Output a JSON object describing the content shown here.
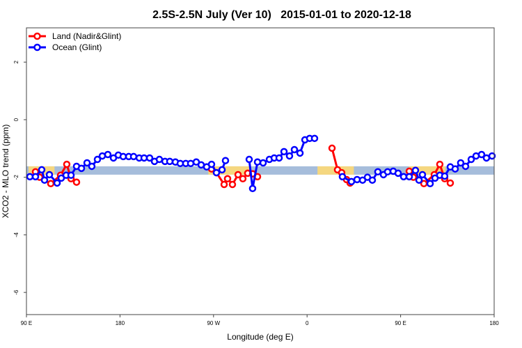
{
  "chart_data": {
    "type": "line",
    "title": "2.5S-2.5N July (Ver 10)   2015-01-01 to 2020-12-18",
    "xlabel": "Longitude (deg E)",
    "ylabel": "XCO2 - MLO trend (ppm)",
    "xlim": [
      90,
      540
    ],
    "ylim": [
      -6.77,
      3.19
    ],
    "x_ticks": [
      {
        "value": 90,
        "label": "90 E"
      },
      {
        "value": 180,
        "label": "180"
      },
      {
        "value": 270,
        "label": "90 W"
      },
      {
        "value": 360,
        "label": "0"
      },
      {
        "value": 450,
        "label": "90 E"
      },
      {
        "value": 540,
        "label": "180"
      }
    ],
    "y_ticks": [
      {
        "value": 2,
        "label": "2"
      },
      {
        "value": 0,
        "label": "0"
      },
      {
        "value": -2,
        "label": "-2"
      },
      {
        "value": -4,
        "label": "-4"
      },
      {
        "value": -6,
        "label": "-6"
      }
    ],
    "grid": false,
    "legend_position": "top-left",
    "background_band": {
      "ymin": -1.91,
      "ymax": -1.62,
      "color": "#a6bddb",
      "land_color": "#fed976",
      "land_ranges": [
        [
          92,
          117
        ],
        [
          265,
          305
        ],
        [
          370,
          405
        ],
        [
          458,
          493
        ]
      ]
    },
    "series": [
      {
        "name": "Land (Nadir&Glint)",
        "color": "#ff0000",
        "x": [
          98.7,
          102.7,
          113.4,
          122.8,
          128.8,
          132.9,
          138.2,
          null,
          268.1,
          272.8,
          280.2,
          283.5,
          288.2,
          293.6,
          298.2,
          302.9,
          307.6,
          312.3,
          null,
          384.0,
          389.3,
          393.3,
          398.0,
          401.4,
          null,
          458.3,
          462.3,
          472.4,
          482.4,
          487.7,
          492.4,
          497.8
        ],
        "y": [
          -1.81,
          -2.0,
          -2.22,
          -1.93,
          -1.55,
          -2.05,
          -2.17,
          null,
          -1.71,
          -1.84,
          -2.25,
          -2.05,
          -2.25,
          -1.91,
          -2.05,
          -1.86,
          -1.88,
          -1.98,
          null,
          -0.99,
          -1.74,
          -1.84,
          -2.08,
          -2.2,
          null,
          -1.79,
          -2.0,
          -2.22,
          -1.91,
          -1.55,
          -2.05,
          -2.2
        ]
      },
      {
        "name": "Ocean (Glint)",
        "color": "#0000ff",
        "x": [
          93.3,
          98.7,
          104.7,
          107.4,
          112.1,
          119.5,
          123.5,
          128.2,
          132.9,
          138.2,
          142.9,
          148.3,
          152.9,
          158.3,
          163.0,
          168.3,
          173.7,
          178.4,
          183.1,
          188.4,
          193.1,
          198.5,
          203.2,
          208.5,
          213.2,
          217.9,
          223.3,
          227.9,
          233.3,
          238.0,
          243.3,
          248.0,
          253.4,
          258.1,
          263.4,
          268.1,
          272.8,
          278.2,
          281.5,
          null,
          304.3,
          307.6,
          312.3,
          317.7,
          323.7,
          328.4,
          333.1,
          337.8,
          343.1,
          347.8,
          353.2,
          357.9,
          362.5,
          367.2,
          null,
          394.0,
          402.7,
          408.1,
          413.4,
          418.1,
          422.8,
          428.1,
          433.5,
          437.5,
          442.9,
          447.6,
          452.9,
          458.3,
          464.3,
          467.7,
          471.0,
          478.4,
          483.1,
          487.7,
          492.4,
          497.8,
          502.5,
          507.8,
          512.5,
          517.9,
          522.6,
          527.9,
          532.6,
          538.0
        ],
        "y": [
          -1.98,
          -1.98,
          -1.74,
          -2.1,
          -1.91,
          -2.2,
          -2.03,
          -1.93,
          -1.93,
          -1.62,
          -1.69,
          -1.5,
          -1.62,
          -1.38,
          -1.26,
          -1.21,
          -1.33,
          -1.23,
          -1.28,
          -1.28,
          -1.28,
          -1.33,
          -1.33,
          -1.33,
          -1.45,
          -1.38,
          -1.45,
          -1.45,
          -1.47,
          -1.52,
          -1.52,
          -1.52,
          -1.47,
          -1.57,
          -1.64,
          -1.55,
          -1.84,
          -1.74,
          -1.42,
          null,
          -1.38,
          -2.39,
          -1.47,
          -1.5,
          -1.38,
          -1.33,
          -1.33,
          -1.11,
          -1.26,
          -1.04,
          -1.16,
          -0.7,
          -0.65,
          -0.65,
          null,
          -1.98,
          -2.15,
          -2.08,
          -2.1,
          -2.0,
          -2.1,
          -1.81,
          -1.91,
          -1.81,
          -1.79,
          -1.86,
          -1.98,
          -1.98,
          -1.76,
          -2.1,
          -1.91,
          -2.22,
          -2.03,
          -1.93,
          -1.96,
          -1.64,
          -1.71,
          -1.5,
          -1.62,
          -1.38,
          -1.26,
          -1.21,
          -1.33,
          -1.26
        ]
      }
    ]
  }
}
